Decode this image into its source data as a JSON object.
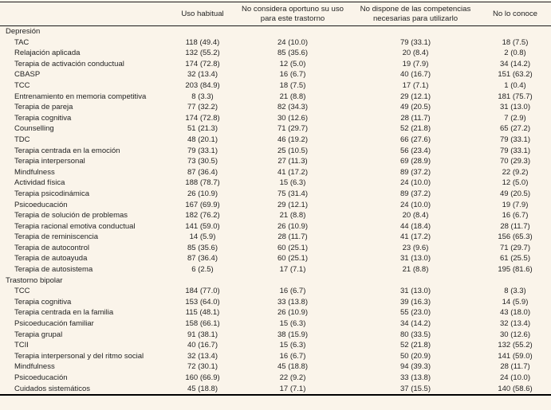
{
  "colors": {
    "background": "#faf4ea",
    "text": "#232323",
    "rule": "#000000"
  },
  "table": {
    "header": {
      "col0": "",
      "col1": "Uso habitual",
      "col2": "No considera oportuno su uso para este trastorno",
      "col3": "No dispone de las competencias necesarias para utilizarlo",
      "col4": "No lo conoce"
    },
    "sections": [
      {
        "title": "Depresión",
        "rows": [
          {
            "label": "TAC",
            "values": [
              "118 (49.4)",
              "24 (10.0)",
              "79 (33.1)",
              "18 (7.5)"
            ]
          },
          {
            "label": "Relajación aplicada",
            "values": [
              "132 (55.2)",
              "85 (35.6)",
              "20 (8.4)",
              "2 (0.8)"
            ]
          },
          {
            "label": "Terapia de activación conductual",
            "values": [
              "174 (72.8)",
              "12 (5.0)",
              "19 (7.9)",
              "34 (14.2)"
            ]
          },
          {
            "label": "CBASP",
            "values": [
              "32 (13.4)",
              "16 (6.7)",
              "40 (16.7)",
              "151 (63.2)"
            ]
          },
          {
            "label": "TCC",
            "values": [
              "203 (84.9)",
              "18 (7.5)",
              "17 (7.1)",
              "1 (0.4)"
            ]
          },
          {
            "label": "Entrenamiento en memoria competitiva",
            "values": [
              "8 (3.3)",
              "21 (8.8)",
              "29 (12.1)",
              "181 (75.7)"
            ]
          },
          {
            "label": "Terapia de pareja",
            "values": [
              "77 (32.2)",
              "82 (34.3)",
              "49 (20.5)",
              "31 (13.0)"
            ]
          },
          {
            "label": "Terapia cognitiva",
            "values": [
              "174 (72.8)",
              "30 (12.6)",
              "28 (11.7)",
              "7 (2.9)"
            ]
          },
          {
            "label": "Counselling",
            "values": [
              "51 (21.3)",
              "71 (29.7)",
              "52 (21.8)",
              "65 (27.2)"
            ]
          },
          {
            "label": "TDC",
            "values": [
              "48 (20.1)",
              "46 (19.2)",
              "66 (27.6)",
              "79 (33.1)"
            ]
          },
          {
            "label": "Terapia centrada en la emoción",
            "values": [
              "79 (33.1)",
              "25 (10.5)",
              "56 (23.4)",
              "79 (33.1)"
            ]
          },
          {
            "label": "Terapia interpersonal",
            "values": [
              "73 (30.5)",
              "27 (11.3)",
              "69 (28.9)",
              "70 (29.3)"
            ]
          },
          {
            "label": "Mindfulness",
            "values": [
              "87 (36.4)",
              "41 (17.2)",
              "89 (37.2)",
              "22 (9.2)"
            ]
          },
          {
            "label": "Actividad física",
            "values": [
              "188 (78.7)",
              "15 (6.3)",
              "24 (10.0)",
              "12 (5.0)"
            ]
          },
          {
            "label": "Terapia psicodinámica",
            "values": [
              "26 (10.9)",
              "75 (31.4)",
              "89 (37.2)",
              "49 (20.5)"
            ]
          },
          {
            "label": "Psicoeducación",
            "values": [
              "167 (69.9)",
              "29 (12.1)",
              "24 (10.0)",
              "19 (7.9)"
            ]
          },
          {
            "label": "Terapia de solución de problemas",
            "values": [
              "182 (76.2)",
              "21 (8.8)",
              "20 (8.4)",
              "16 (6.7)"
            ]
          },
          {
            "label": "Terapia racional emotiva conductual",
            "values": [
              "141 (59.0)",
              "26 (10.9)",
              "44 (18.4)",
              "28 (11.7)"
            ]
          },
          {
            "label": "Terapia de reminiscencia",
            "values": [
              "14 (5.9)",
              "28 (11.7)",
              "41 (17.2)",
              "156 (65.3)"
            ]
          },
          {
            "label": "Terapia de autocontrol",
            "values": [
              "85 (35.6)",
              "60 (25.1)",
              "23 (9.6)",
              "71 (29.7)"
            ]
          },
          {
            "label": "Terapia de autoayuda",
            "values": [
              "87 (36.4)",
              "60 (25.1)",
              "31 (13.0)",
              "61 (25.5)"
            ]
          },
          {
            "label": "Terapia de autosistema",
            "values": [
              "6 (2.5)",
              "17 (7.1)",
              "21 (8.8)",
              "195 (81.6)"
            ]
          }
        ]
      },
      {
        "title": "Trastorno bipolar",
        "rows": [
          {
            "label": "TCC",
            "values": [
              "184 (77.0)",
              "16 (6.7)",
              "31 (13.0)",
              "8 (3.3)"
            ]
          },
          {
            "label": "Terapia cognitiva",
            "values": [
              "153 (64.0)",
              "33 (13.8)",
              "39 (16.3)",
              "14 (5.9)"
            ]
          },
          {
            "label": "Terapia centrada en la familia",
            "values": [
              "115 (48.1)",
              "26 (10.9)",
              "55 (23.0)",
              "43 (18.0)"
            ]
          },
          {
            "label": "Psicoeducación familiar",
            "values": [
              "158 (66.1)",
              "15 (6.3)",
              "34 (14.2)",
              "32 (13.4)"
            ]
          },
          {
            "label": "Terapia grupal",
            "values": [
              "91 (38.1)",
              "38 (15.9)",
              "80 (33.5)",
              "30 (12.6)"
            ]
          },
          {
            "label": "TCII",
            "values": [
              "40 (16.7)",
              "15 (6.3)",
              "52 (21.8)",
              "132 (55.2)"
            ]
          },
          {
            "label": "Terapia interpersonal y del ritmo social",
            "values": [
              "32 (13.4)",
              "16 (6.7)",
              "50 (20.9)",
              "141 (59.0)"
            ]
          },
          {
            "label": "Mindfulness",
            "values": [
              "72 (30.1)",
              "45 (18.8)",
              "94 (39.3)",
              "28 (11.7)"
            ]
          },
          {
            "label": "Psicoeducación",
            "values": [
              "160 (66.9)",
              "22 (9.2)",
              "33 (13.8)",
              "24 (10.0)"
            ]
          },
          {
            "label": "Cuidados sistemáticos",
            "values": [
              "45 (18.8)",
              "17 (7.1)",
              "37 (15.5)",
              "140 (58.6)"
            ]
          }
        ]
      }
    ]
  }
}
